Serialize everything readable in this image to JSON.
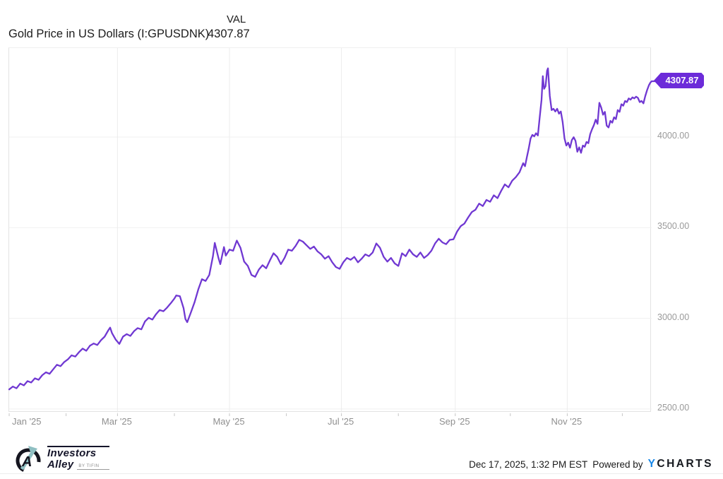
{
  "header": {
    "title": "Gold Price in US Dollars (I:GPUSDNK)",
    "series_column_label": "VAL",
    "series_value": "4307.87"
  },
  "chart_data": {
    "type": "line",
    "title": "Gold Price in US Dollars (I:GPUSDNK)",
    "series_name": "VAL",
    "last_value": 4307.87,
    "last_value_label": "4307.87",
    "line_color": "#7038D2",
    "badge_color": "#6C2BD9",
    "grid": true,
    "legend_position": "none",
    "x_unit": "day_of_year_2025",
    "xlim": [
      0,
      350
    ],
    "ylim": [
      2480,
      4491
    ],
    "y_ticks": [
      {
        "value": 2500,
        "label": "2500.00"
      },
      {
        "value": 3000,
        "label": "3000.00"
      },
      {
        "value": 3500,
        "label": "3500.00"
      },
      {
        "value": 4000,
        "label": "4000.00"
      }
    ],
    "x_ticks": [
      {
        "day": 0,
        "label": "Jan '25",
        "align": "left"
      },
      {
        "day": 59,
        "label": "Mar '25"
      },
      {
        "day": 120,
        "label": "May '25"
      },
      {
        "day": 181,
        "label": "Jul '25"
      },
      {
        "day": 243,
        "label": "Sep '25"
      },
      {
        "day": 304,
        "label": "Nov '25"
      }
    ],
    "minor_tick_days": [
      0,
      31,
      59,
      90,
      120,
      151,
      181,
      212,
      243,
      273,
      304,
      334
    ],
    "points": [
      [
        0,
        2608
      ],
      [
        2,
        2624
      ],
      [
        4,
        2614
      ],
      [
        6,
        2640
      ],
      [
        8,
        2630
      ],
      [
        10,
        2654
      ],
      [
        12,
        2646
      ],
      [
        14,
        2669
      ],
      [
        16,
        2661
      ],
      [
        18,
        2686
      ],
      [
        20,
        2702
      ],
      [
        22,
        2694
      ],
      [
        24,
        2719
      ],
      [
        26,
        2744
      ],
      [
        28,
        2736
      ],
      [
        30,
        2759
      ],
      [
        32,
        2774
      ],
      [
        34,
        2796
      ],
      [
        36,
        2789
      ],
      [
        38,
        2813
      ],
      [
        40,
        2833
      ],
      [
        42,
        2821
      ],
      [
        44,
        2849
      ],
      [
        46,
        2861
      ],
      [
        48,
        2853
      ],
      [
        50,
        2879
      ],
      [
        52,
        2899
      ],
      [
        54,
        2934
      ],
      [
        55,
        2949
      ],
      [
        56,
        2919
      ],
      [
        58,
        2883
      ],
      [
        60,
        2859
      ],
      [
        62,
        2899
      ],
      [
        64,
        2913
      ],
      [
        66,
        2903
      ],
      [
        68,
        2929
      ],
      [
        70,
        2946
      ],
      [
        72,
        2939
      ],
      [
        74,
        2983
      ],
      [
        76,
        3003
      ],
      [
        78,
        2993
      ],
      [
        80,
        3023
      ],
      [
        82,
        3046
      ],
      [
        84,
        3039
      ],
      [
        86,
        3059
      ],
      [
        88,
        3083
      ],
      [
        90,
        3109
      ],
      [
        91,
        3126
      ],
      [
        93,
        3122
      ],
      [
        95,
        3056
      ],
      [
        96,
        2996
      ],
      [
        97,
        2979
      ],
      [
        99,
        3033
      ],
      [
        101,
        3089
      ],
      [
        103,
        3159
      ],
      [
        105,
        3216
      ],
      [
        107,
        3206
      ],
      [
        109,
        3239
      ],
      [
        111,
        3343
      ],
      [
        112,
        3416
      ],
      [
        114,
        3333
      ],
      [
        115,
        3299
      ],
      [
        117,
        3393
      ],
      [
        118,
        3346
      ],
      [
        120,
        3379
      ],
      [
        122,
        3373
      ],
      [
        124,
        3429
      ],
      [
        126,
        3389
      ],
      [
        128,
        3313
      ],
      [
        130,
        3289
      ],
      [
        132,
        3239
      ],
      [
        134,
        3229
      ],
      [
        136,
        3269
      ],
      [
        138,
        3293
      ],
      [
        140,
        3276
      ],
      [
        142,
        3319
      ],
      [
        144,
        3359
      ],
      [
        146,
        3339
      ],
      [
        148,
        3299
      ],
      [
        150,
        3333
      ],
      [
        152,
        3379
      ],
      [
        154,
        3373
      ],
      [
        156,
        3399
      ],
      [
        158,
        3433
      ],
      [
        160,
        3423
      ],
      [
        162,
        3403
      ],
      [
        164,
        3383
      ],
      [
        166,
        3396
      ],
      [
        168,
        3369
      ],
      [
        170,
        3353
      ],
      [
        172,
        3329
      ],
      [
        174,
        3343
      ],
      [
        176,
        3309
      ],
      [
        178,
        3283
      ],
      [
        180,
        3273
      ],
      [
        182,
        3309
      ],
      [
        184,
        3333
      ],
      [
        186,
        3323
      ],
      [
        188,
        3339
      ],
      [
        190,
        3309
      ],
      [
        192,
        3329
      ],
      [
        194,
        3353
      ],
      [
        196,
        3343
      ],
      [
        198,
        3363
      ],
      [
        200,
        3413
      ],
      [
        202,
        3389
      ],
      [
        204,
        3339
      ],
      [
        206,
        3313
      ],
      [
        208,
        3333
      ],
      [
        210,
        3303
      ],
      [
        212,
        3289
      ],
      [
        214,
        3359
      ],
      [
        216,
        3343
      ],
      [
        218,
        3379
      ],
      [
        220,
        3353
      ],
      [
        222,
        3339
      ],
      [
        224,
        3363
      ],
      [
        226,
        3333
      ],
      [
        228,
        3349
      ],
      [
        230,
        3373
      ],
      [
        232,
        3413
      ],
      [
        234,
        3439
      ],
      [
        236,
        3419
      ],
      [
        238,
        3409
      ],
      [
        240,
        3433
      ],
      [
        242,
        3436
      ],
      [
        244,
        3479
      ],
      [
        246,
        3509
      ],
      [
        248,
        3523
      ],
      [
        250,
        3556
      ],
      [
        252,
        3586
      ],
      [
        254,
        3599
      ],
      [
        256,
        3633
      ],
      [
        258,
        3619
      ],
      [
        260,
        3653
      ],
      [
        262,
        3643
      ],
      [
        264,
        3679
      ],
      [
        266,
        3663
      ],
      [
        268,
        3703
      ],
      [
        270,
        3739
      ],
      [
        272,
        3723
      ],
      [
        274,
        3759
      ],
      [
        276,
        3779
      ],
      [
        278,
        3806
      ],
      [
        280,
        3856
      ],
      [
        281,
        3839
      ],
      [
        282,
        3889
      ],
      [
        283,
        3936
      ],
      [
        284,
        3991
      ],
      [
        285,
        4012
      ],
      [
        286,
        4004
      ],
      [
        287,
        4021
      ],
      [
        288,
        4009
      ],
      [
        289,
        4109
      ],
      [
        290,
        4206
      ],
      [
        290.7,
        4336
      ],
      [
        291.4,
        4266
      ],
      [
        292.2,
        4281
      ],
      [
        293,
        4366
      ],
      [
        293.5,
        4379
      ],
      [
        294.5,
        4226
      ],
      [
        295.5,
        4149
      ],
      [
        296.5,
        4156
      ],
      [
        297.5,
        4141
      ],
      [
        298.5,
        4156
      ],
      [
        299.5,
        4129
      ],
      [
        300.5,
        4141
      ],
      [
        301.5,
        4083
      ],
      [
        302.5,
        3993
      ],
      [
        303.5,
        3953
      ],
      [
        304.5,
        3969
      ],
      [
        305.5,
        3941
      ],
      [
        306.5,
        3983
      ],
      [
        307.5,
        3999
      ],
      [
        308.5,
        3979
      ],
      [
        309.5,
        3919
      ],
      [
        310.5,
        3943
      ],
      [
        311.5,
        3913
      ],
      [
        312.5,
        3953
      ],
      [
        313.5,
        3946
      ],
      [
        314.5,
        3973
      ],
      [
        315.5,
        3966
      ],
      [
        316.5,
        4016
      ],
      [
        317.5,
        4043
      ],
      [
        318.5,
        4066
      ],
      [
        319.5,
        4096
      ],
      [
        320.5,
        4073
      ],
      [
        321.5,
        4189
      ],
      [
        322.5,
        4163
      ],
      [
        323.5,
        4123
      ],
      [
        324.5,
        4139
      ],
      [
        325.5,
        4063
      ],
      [
        326.5,
        4053
      ],
      [
        327.5,
        4089
      ],
      [
        328.5,
        4079
      ],
      [
        329.5,
        4109
      ],
      [
        330.5,
        4099
      ],
      [
        331.5,
        4149
      ],
      [
        332.5,
        4139
      ],
      [
        333.5,
        4181
      ],
      [
        334.5,
        4173
      ],
      [
        335.5,
        4199
      ],
      [
        336.5,
        4193
      ],
      [
        337.5,
        4213
      ],
      [
        338.5,
        4206
      ],
      [
        339.5,
        4219
      ],
      [
        340.5,
        4213
      ],
      [
        341.5,
        4223
      ],
      [
        342.5,
        4216
      ],
      [
        343.5,
        4193
      ],
      [
        344.5,
        4199
      ],
      [
        345.5,
        4186
      ],
      [
        346.5,
        4226
      ],
      [
        347.5,
        4259
      ],
      [
        348.5,
        4286
      ],
      [
        349.3,
        4301
      ],
      [
        350,
        4307.87
      ]
    ]
  },
  "footer": {
    "logo": {
      "line1": "Investors",
      "line2": "Alley",
      "byline": "BY TIFIN"
    },
    "timestamp": "Dec 17, 2025, 1:32 PM EST",
    "powered_by": "Powered by",
    "ycharts_y": "Y",
    "ycharts_rest": "CHARTS"
  },
  "colors": {
    "line": "#7038D2",
    "badge": "#6C2BD9",
    "grid_horizontal": "#f0f0f0",
    "grid_vertical": "#ececec",
    "axis_text": "#9a9a9a",
    "ycharts_blue": "#1787E8",
    "logo_dark": "#15152a",
    "logo_teal": "#8FBFC2"
  }
}
